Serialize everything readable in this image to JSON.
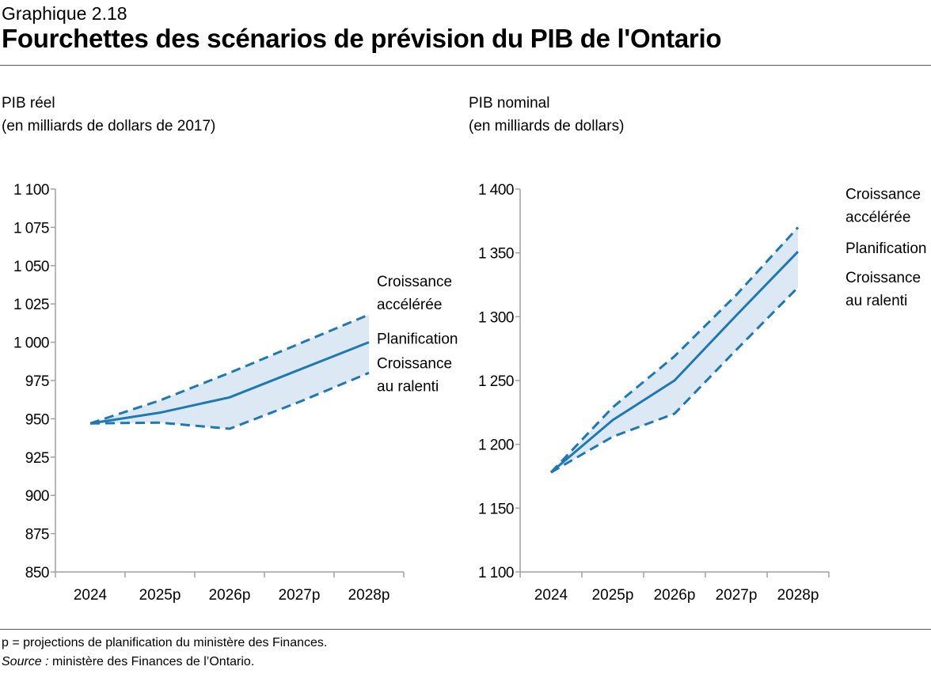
{
  "header": {
    "kicker": "Graphique 2.18",
    "title": "Fourchettes des scénarios de prévision du PIB de l'Ontario"
  },
  "footer": {
    "note": "p = projections de planification du ministère des Finances.",
    "source_label": "Source :",
    "source_text": " ministère des Finances de l’Ontario."
  },
  "colors": {
    "line": "#1f77b4",
    "band": "#dce9f5",
    "axis": "#a0a0a0"
  },
  "chart_data": [
    {
      "type": "line",
      "ylabel_line1": "PIB réel",
      "ylabel_line2": "(en milliards de dollars de 2017)",
      "categories": [
        "2024",
        "2025p",
        "2026p",
        "2027p",
        "2028p"
      ],
      "ylim": [
        850,
        1100
      ],
      "yticks": [
        850,
        875,
        900,
        925,
        950,
        975,
        1000,
        1025,
        1050,
        1075,
        1100
      ],
      "ytick_labels": [
        "850",
        "875",
        "900",
        "925",
        "950",
        "975",
        "1 000",
        "1 025",
        "1 050",
        "1 075",
        "1 100"
      ],
      "grid": false,
      "series": [
        {
          "name": "Croissance accélérée",
          "label_lines": [
            "Croissance",
            "accélérée"
          ],
          "style": "dashed",
          "values": [
            947,
            962,
            980,
            999,
            1018
          ]
        },
        {
          "name": "Planification",
          "label_lines": [
            "Planification"
          ],
          "style": "solid",
          "values": [
            947,
            954,
            964,
            982,
            1000
          ]
        },
        {
          "name": "Croissance au ralenti",
          "label_lines": [
            "Croissance",
            "au ralenti"
          ],
          "style": "dashed",
          "values": [
            947,
            947.5,
            943.5,
            961,
            980
          ]
        }
      ]
    },
    {
      "type": "line",
      "ylabel_line1": "PIB nominal",
      "ylabel_line2": "(en milliards de dollars)",
      "categories": [
        "2024",
        "2025p",
        "2026p",
        "2027p",
        "2028p"
      ],
      "ylim": [
        1100,
        1400
      ],
      "yticks": [
        1100,
        1150,
        1200,
        1250,
        1300,
        1350,
        1400
      ],
      "ytick_labels": [
        "1 100",
        "1 150",
        "1 200",
        "1 250",
        "1 300",
        "1 350",
        "1 400"
      ],
      "grid": false,
      "series": [
        {
          "name": "Croissance accélérée",
          "label_lines": [
            "Croissance",
            "accélérée"
          ],
          "style": "dashed",
          "values": [
            1178,
            1229,
            1269,
            1317,
            1370
          ]
        },
        {
          "name": "Planification",
          "label_lines": [
            "Planification"
          ],
          "style": "solid",
          "values": [
            1178,
            1219,
            1250,
            1301,
            1351
          ]
        },
        {
          "name": "Croissance au ralenti",
          "label_lines": [
            "Croissance",
            "au ralenti"
          ],
          "style": "dashed",
          "values": [
            1178,
            1206,
            1224,
            1274,
            1323
          ]
        }
      ]
    }
  ]
}
